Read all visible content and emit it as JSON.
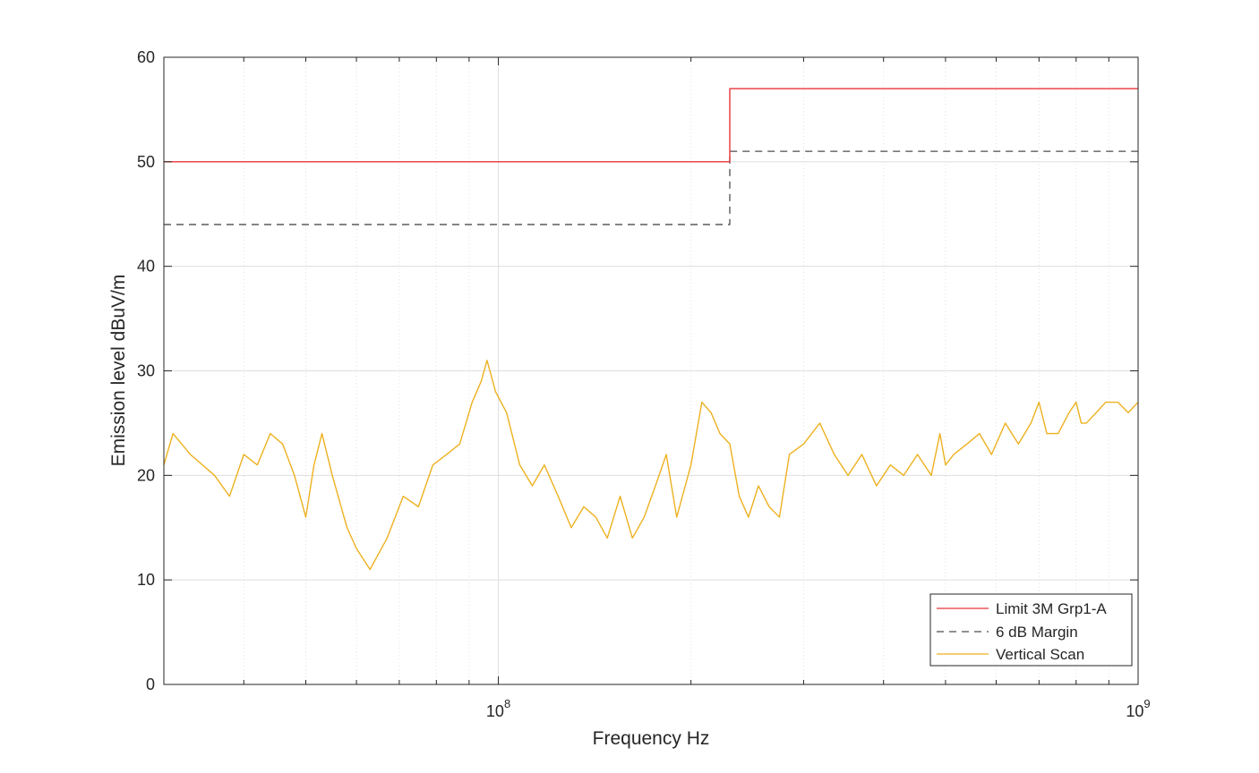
{
  "chart_data": {
    "type": "line",
    "title": "",
    "xlabel": "Frequency Hz",
    "ylabel": "Emission level dBuV/m",
    "xscale": "log",
    "xlim": [
      30000000,
      1000000000
    ],
    "ylim": [
      0,
      60
    ],
    "grid": true,
    "legend_position": "bottom-right",
    "x_tick_labels": [
      {
        "value": 100000000,
        "base": "10",
        "exp": "8"
      },
      {
        "value": 1000000000,
        "base": "10",
        "exp": "9"
      }
    ],
    "y_ticks": [
      0,
      10,
      20,
      30,
      40,
      50,
      60
    ],
    "y_tick_labels": [
      "0",
      "10",
      "20",
      "30",
      "40",
      "50",
      "60"
    ],
    "series": [
      {
        "name": "Limit 3M Grp1-A",
        "style": "solid",
        "color": "#e8343a",
        "x": [
          30000000,
          230000000,
          230000000,
          1000000000
        ],
        "y": [
          50,
          50,
          57,
          57
        ]
      },
      {
        "name": "6 dB Margin",
        "style": "dashed",
        "color": "#4d4d4d",
        "x": [
          30000000,
          230000000,
          230000000,
          1000000000
        ],
        "y": [
          44,
          44,
          51,
          51
        ]
      },
      {
        "name": "Vertical Scan",
        "style": "solid",
        "color": "#edb120",
        "x": [
          30000000,
          31000000,
          33000000,
          36000000,
          38000000,
          40000000,
          42000000,
          44000000,
          46000000,
          48000000,
          50000000,
          51500000,
          53000000,
          55000000,
          58000000,
          60000000,
          63000000,
          67000000,
          71000000,
          75000000,
          79000000,
          83000000,
          87000000,
          91000000,
          94000000,
          96000000,
          99000000,
          103000000,
          108000000,
          113000000,
          118000000,
          124000000,
          130000000,
          136000000,
          142000000,
          148000000,
          155000000,
          162000000,
          169000000,
          176000000,
          183000000,
          190000000,
          200000000,
          208000000,
          215000000,
          222000000,
          230000000,
          238000000,
          246000000,
          255000000,
          265000000,
          275000000,
          285000000,
          300000000,
          318000000,
          335000000,
          352000000,
          370000000,
          390000000,
          410000000,
          430000000,
          452000000,
          475000000,
          490000000,
          500000000,
          515000000,
          540000000,
          565000000,
          590000000,
          620000000,
          650000000,
          680000000,
          700000000,
          720000000,
          750000000,
          780000000,
          800000000,
          815000000,
          830000000,
          860000000,
          890000000,
          930000000,
          965000000,
          1000000000
        ],
        "y": [
          21,
          24,
          22,
          20,
          18,
          22,
          21,
          24,
          23,
          20,
          16,
          21,
          24,
          20,
          15,
          13,
          11,
          14,
          18,
          17,
          21,
          22,
          23,
          27,
          29,
          31,
          28,
          26,
          21,
          19,
          21,
          18,
          15,
          17,
          16,
          14,
          18,
          14,
          16,
          19,
          22,
          16,
          21,
          27,
          26,
          24,
          23,
          18,
          16,
          19,
          17,
          16,
          22,
          23,
          25,
          22,
          20,
          22,
          19,
          21,
          20,
          22,
          20,
          24,
          21,
          22,
          23,
          24,
          22,
          25,
          23,
          25,
          27,
          24,
          24,
          26,
          27,
          25,
          25,
          26,
          27,
          27,
          26,
          27
        ]
      }
    ]
  }
}
